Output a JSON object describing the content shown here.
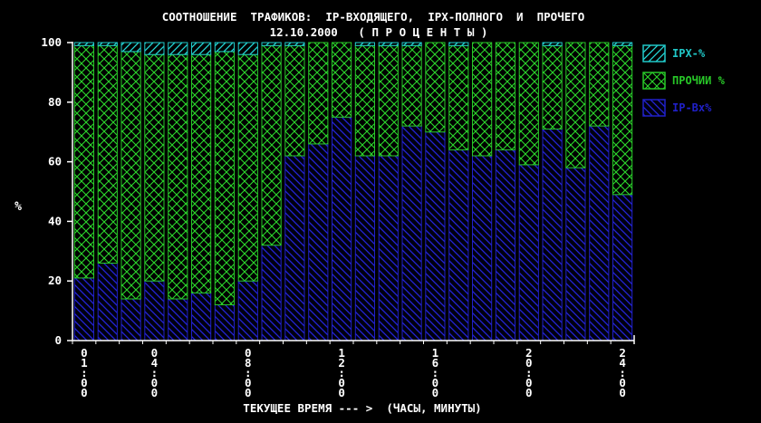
{
  "chart_data": {
    "type": "bar",
    "stacked": true,
    "title": "СООТНОШЕНИЕ  ТРАФИКОВ:  IP-ВХОДЯЩЕГО,  IPX-ПОЛНОГО  И  ПРОЧЕГО",
    "subtitle": "12.10.2000   ( П Р О Ц Е Н Т Ы )",
    "xlabel": "ТЕКУЩЕЕ ВРЕМЯ --- >  (ЧАСЫ, МИНУТЫ)",
    "ylabel": "%",
    "ylim": [
      0,
      100
    ],
    "yticks": [
      0,
      20,
      40,
      60,
      80,
      100
    ],
    "grid": false,
    "legend_position": "right",
    "xtick_labels": [
      {
        "index": 0,
        "text": "01:00"
      },
      {
        "index": 3,
        "text": "04:00"
      },
      {
        "index": 7,
        "text": "08:00"
      },
      {
        "index": 11,
        "text": "12:00"
      },
      {
        "index": 15,
        "text": "16:00"
      },
      {
        "index": 19,
        "text": "20:00"
      },
      {
        "index": 23,
        "text": "24:00"
      }
    ],
    "series": [
      {
        "name": "IP-Вх%",
        "color": "#2020c8",
        "pattern": "diagonal-back",
        "values": [
          21,
          26,
          14,
          20,
          14,
          16,
          12,
          20,
          32,
          62,
          66,
          75,
          62,
          62,
          72,
          70,
          64,
          62,
          64,
          59,
          71,
          58,
          72,
          49
        ]
      },
      {
        "name": "ПРОЧИИ %",
        "color": "#28c828",
        "pattern": "cross",
        "values": [
          78,
          73,
          83,
          76,
          82,
          80,
          85,
          76,
          67,
          37,
          34,
          25,
          37,
          37,
          27,
          30,
          35,
          38,
          36,
          41,
          28,
          42,
          28,
          50
        ]
      },
      {
        "name": "IPX-%",
        "color": "#20c8c8",
        "pattern": "diagonal-fwd",
        "values": [
          1,
          1,
          3,
          4,
          4,
          4,
          3,
          4,
          1,
          1,
          0,
          0,
          1,
          1,
          1,
          0,
          1,
          0,
          0,
          0,
          1,
          0,
          0,
          1
        ]
      }
    ],
    "legend_order": [
      2,
      1,
      0
    ]
  },
  "colors": {
    "background": "#000000",
    "text": "#ffffff",
    "axis": "#ffffff"
  }
}
